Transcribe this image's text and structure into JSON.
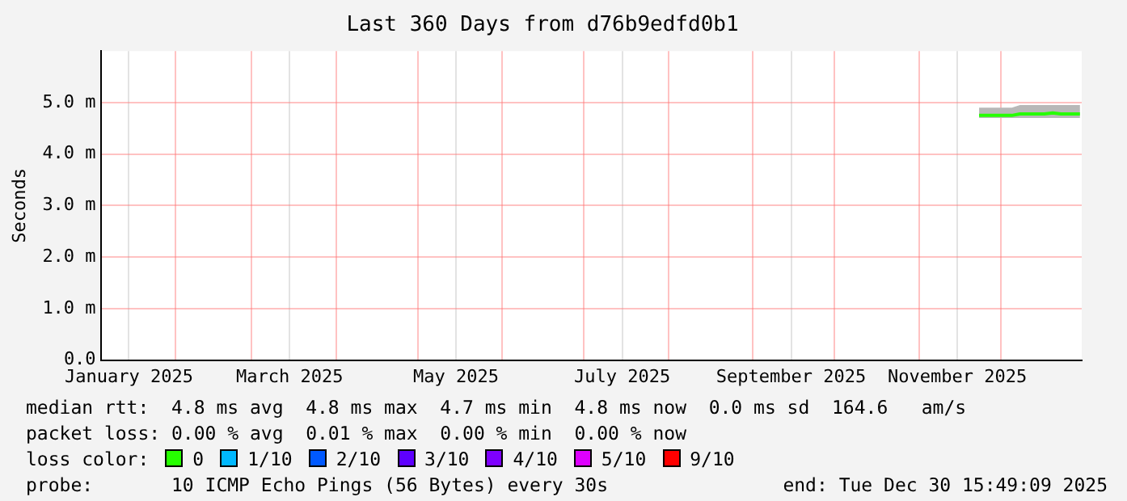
{
  "chart_data": {
    "type": "line",
    "title": "Last 360 Days from d76b9edfd0b1",
    "ylabel": "Seconds",
    "legend_title": "loss color:",
    "legend": "bottom",
    "grid": true,
    "marker": "none",
    "line_style": "solid",
    "xlim": [
      "2025-01-04T15:49",
      "2025-12-30T15:49"
    ],
    "xticks": [
      {
        "value": "2025-01-15",
        "label": "January 2025"
      },
      {
        "value": "2025-02-01",
        "label": null
      },
      {
        "value": "2025-03-01",
        "label": null
      },
      {
        "value": "2025-03-15",
        "label": "March 2025"
      },
      {
        "value": "2025-04-01",
        "label": null
      },
      {
        "value": "2025-05-01",
        "label": null
      },
      {
        "value": "2025-05-15",
        "label": "May 2025"
      },
      {
        "value": "2025-06-01",
        "label": null
      },
      {
        "value": "2025-07-01",
        "label": null
      },
      {
        "value": "2025-07-15",
        "label": "July 2025"
      },
      {
        "value": "2025-08-01",
        "label": null
      },
      {
        "value": "2025-09-01",
        "label": null
      },
      {
        "value": "2025-09-15",
        "label": "September 2025"
      },
      {
        "value": "2025-10-01",
        "label": null
      },
      {
        "value": "2025-11-01",
        "label": null
      },
      {
        "value": "2025-11-15",
        "label": "November 2025"
      },
      {
        "value": "2025-12-01",
        "label": null
      }
    ],
    "ylim": [
      0,
      6
    ],
    "yticks": [
      {
        "value": 0,
        "label": "0.0"
      },
      {
        "value": 1,
        "label": "1.0 m"
      },
      {
        "value": 2,
        "label": "2.0 m"
      },
      {
        "value": 3,
        "label": "3.0 m"
      },
      {
        "value": 4,
        "label": "4.0 m"
      },
      {
        "value": 5,
        "label": "5.0 m"
      }
    ],
    "x": [
      "2025-11-23",
      "2025-11-26",
      "2025-11-29",
      "2025-12-02",
      "2025-12-05",
      "2025-12-08",
      "2025-12-11",
      "2025-12-14",
      "2025-12-17",
      "2025-12-20",
      "2025-12-23",
      "2025-12-26",
      "2025-12-29",
      "2025-12-30"
    ],
    "series": [
      {
        "name": "0",
        "color": "#26ff00",
        "values": [
          4.75,
          4.75,
          4.75,
          4.75,
          4.75,
          4.78,
          4.78,
          4.78,
          4.78,
          4.8,
          4.78,
          4.78,
          4.78,
          4.78
        ],
        "lower": [
          4.7,
          4.7,
          4.7,
          4.7,
          4.7,
          4.7,
          4.7,
          4.7,
          4.7,
          4.7,
          4.7,
          4.7,
          4.7,
          4.7
        ],
        "upper": [
          4.9,
          4.9,
          4.9,
          4.9,
          4.9,
          4.95,
          4.95,
          4.95,
          4.95,
          4.95,
          4.95,
          4.95,
          4.95,
          4.95
        ]
      },
      {
        "name": "1/10",
        "color": "#00b8ff",
        "values": [
          null,
          null,
          null,
          null,
          null,
          null,
          null,
          null,
          null,
          null,
          null,
          null,
          null,
          null
        ]
      },
      {
        "name": "2/10",
        "color": "#0059ff",
        "values": [
          null,
          null,
          null,
          null,
          null,
          null,
          null,
          null,
          null,
          null,
          null,
          null,
          null,
          null
        ]
      },
      {
        "name": "3/10",
        "color": "#5e00ff",
        "values": [
          null,
          null,
          null,
          null,
          null,
          null,
          null,
          null,
          null,
          null,
          null,
          null,
          null,
          null
        ]
      },
      {
        "name": "4/10",
        "color": "#7e00ff",
        "values": [
          null,
          null,
          null,
          null,
          null,
          null,
          null,
          null,
          null,
          null,
          null,
          null,
          null,
          null
        ]
      },
      {
        "name": "5/10",
        "color": "#dd00ff",
        "values": [
          null,
          null,
          null,
          null,
          null,
          null,
          null,
          null,
          null,
          null,
          null,
          null,
          null,
          null
        ]
      },
      {
        "name": "9/10",
        "color": "#ff0000",
        "values": [
          null,
          null,
          null,
          null,
          null,
          null,
          null,
          null,
          null,
          null,
          null,
          null,
          null,
          null
        ]
      }
    ],
    "annotations": [
      "median rtt:  4.8 ms avg  4.8 ms max  4.7 ms min  4.8 ms now  0.0 ms sd  164.6   am/s",
      "packet loss: 0.00 % avg  0.01 % max  0.00 % min  0.00 % now",
      "probe:       10 ICMP Echo Pings (56 Bytes) every 30s",
      "end: Tue Dec 30 15:49:09 2025"
    ]
  }
}
